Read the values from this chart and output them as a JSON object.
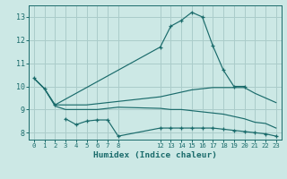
{
  "bg_color": "#cce8e5",
  "grid_color": "#aaccca",
  "line_color": "#1a6b6b",
  "xlabel": "Humidex (Indice chaleur)",
  "xlim": [
    -0.5,
    23.5
  ],
  "ylim": [
    7.7,
    13.5
  ],
  "xticks": [
    0,
    1,
    2,
    3,
    4,
    5,
    6,
    7,
    8,
    12,
    13,
    14,
    15,
    16,
    17,
    18,
    19,
    20,
    21,
    22,
    23
  ],
  "yticks": [
    8,
    9,
    10,
    11,
    12,
    13
  ],
  "line_peak_x": [
    0,
    1,
    2,
    12,
    13,
    14,
    15,
    16,
    17,
    18,
    19,
    20
  ],
  "line_peak_y": [
    10.35,
    9.9,
    9.2,
    11.7,
    12.6,
    12.85,
    13.2,
    13.0,
    11.75,
    10.7,
    10.0,
    10.0
  ],
  "line_upper_x": [
    0,
    1,
    2,
    3,
    4,
    5,
    6,
    7,
    8,
    12,
    13,
    14,
    15,
    16,
    17,
    18,
    19,
    20,
    21,
    22,
    23
  ],
  "line_upper_y": [
    10.35,
    9.9,
    9.2,
    9.2,
    9.2,
    9.2,
    9.25,
    9.3,
    9.35,
    9.55,
    9.65,
    9.75,
    9.85,
    9.9,
    9.95,
    9.95,
    9.95,
    9.95,
    9.7,
    9.5,
    9.3
  ],
  "line_lower_x": [
    0,
    1,
    2,
    3,
    4,
    5,
    6,
    7,
    8,
    12,
    13,
    14,
    15,
    16,
    17,
    18,
    19,
    20,
    21,
    22,
    23
  ],
  "line_lower_y": [
    10.35,
    9.9,
    9.15,
    9.0,
    9.0,
    9.0,
    9.0,
    9.05,
    9.1,
    9.05,
    9.0,
    9.0,
    8.95,
    8.9,
    8.85,
    8.8,
    8.7,
    8.6,
    8.45,
    8.4,
    8.2
  ],
  "line_zigzag_x": [
    3,
    4,
    5,
    6,
    7,
    8,
    12,
    13,
    14,
    15,
    16,
    17,
    18,
    19,
    20,
    21,
    22,
    23
  ],
  "line_zigzag_y": [
    8.6,
    8.35,
    8.5,
    8.55,
    8.55,
    7.85,
    8.2,
    8.2,
    8.2,
    8.2,
    8.2,
    8.2,
    8.15,
    8.1,
    8.05,
    8.0,
    7.95,
    7.85
  ]
}
